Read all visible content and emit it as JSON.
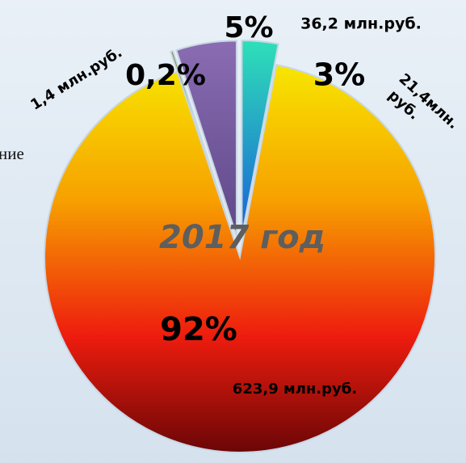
{
  "chart_data": {
    "type": "pie",
    "center_label": "2017 год",
    "side_text": "ние",
    "values": [
      0.2,
      5,
      3,
      92
    ],
    "value_labels": [
      "0,2%",
      "5%",
      "3%",
      "92%"
    ],
    "amount_labels": [
      "1,4 млн.руб.",
      "36,2 млн.руб.",
      "21,4млн. руб.",
      "623,9 млн.руб."
    ],
    "colors": [
      "#6f8a3c",
      "#7b5fa3",
      "#1fb8c8",
      "#f7b500"
    ],
    "exploded": [
      true,
      true,
      true,
      false
    ]
  }
}
